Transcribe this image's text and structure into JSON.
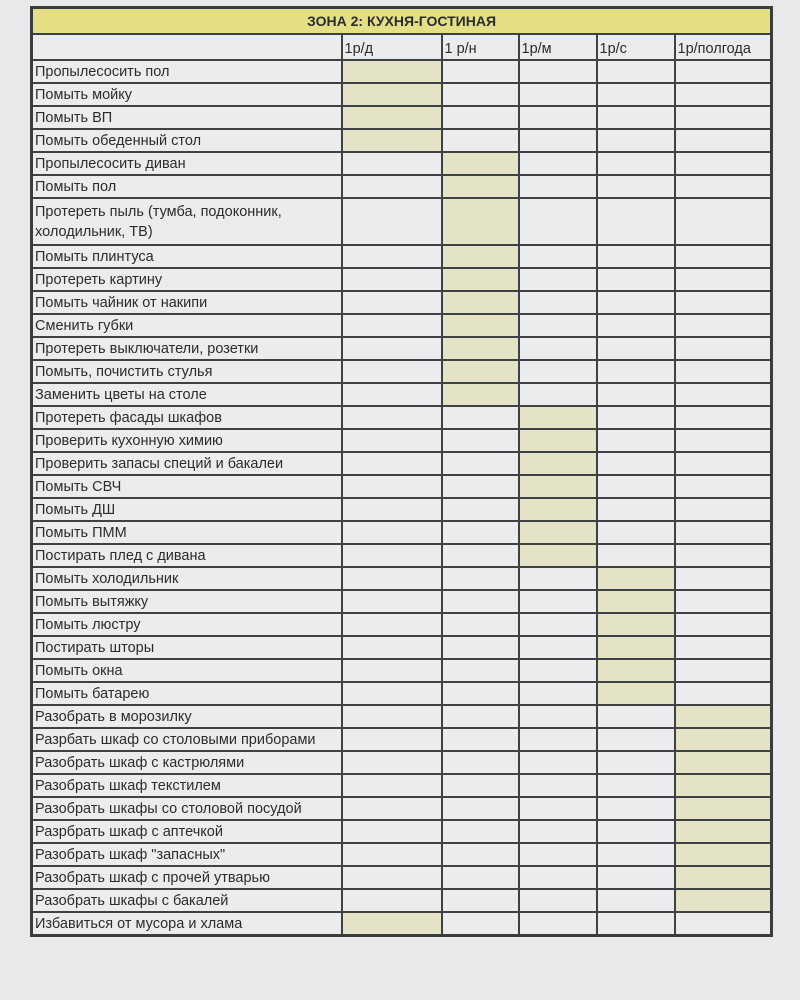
{
  "title": "ЗОНА 2: КУХНЯ-ГОСТИНАЯ",
  "columns": [
    "1р/д",
    "1 р/н",
    "1р/м",
    "1р/с",
    "1р/полгода"
  ],
  "colors": {
    "title_bg": "#e4df85",
    "highlight": "#e4e3c6",
    "border": "#3f4245"
  },
  "rows": [
    {
      "task": "Пропылесосить пол",
      "frequency": "1р/д"
    },
    {
      "task": "Помыть мойку",
      "frequency": "1р/д"
    },
    {
      "task": "Помыть ВП",
      "frequency": "1р/д"
    },
    {
      "task": "Помыть обеденный стол",
      "frequency": "1р/д"
    },
    {
      "task": "Пропылесосить диван",
      "frequency": "1 р/н"
    },
    {
      "task": "Помыть пол",
      "frequency": "1 р/н"
    },
    {
      "task": "Протереть пыль (тумба, подоконник, холодильник, ТВ)",
      "frequency": "1 р/н"
    },
    {
      "task": "Помыть плинтуса",
      "frequency": "1 р/н"
    },
    {
      "task": "Протереть картину",
      "frequency": "1 р/н"
    },
    {
      "task": "Помыть чайник от накипи",
      "frequency": "1 р/н"
    },
    {
      "task": "Сменить губки",
      "frequency": "1 р/н"
    },
    {
      "task": "Протереть выключатели, розетки",
      "frequency": "1 р/н"
    },
    {
      "task": "Помыть, почистить стулья",
      "frequency": "1 р/н"
    },
    {
      "task": "Заменить цветы на столе",
      "frequency": "1 р/н"
    },
    {
      "task": "Протереть фасады шкафов",
      "frequency": "1р/м"
    },
    {
      "task": "Проверить кухонную химию",
      "frequency": "1р/м"
    },
    {
      "task": "Проверить запасы специй и бакалеи",
      "frequency": "1р/м"
    },
    {
      "task": "Помыть СВЧ",
      "frequency": "1р/м"
    },
    {
      "task": "Помыть ДШ",
      "frequency": "1р/м"
    },
    {
      "task": "Помыть ПММ",
      "frequency": "1р/м"
    },
    {
      "task": "Постирать плед с дивана",
      "frequency": "1р/м"
    },
    {
      "task": "Помыть холодильник",
      "frequency": "1р/с"
    },
    {
      "task": "Помыть вытяжку",
      "frequency": "1р/с"
    },
    {
      "task": "Помыть люстру",
      "frequency": "1р/с"
    },
    {
      "task": "Постирать шторы",
      "frequency": "1р/с"
    },
    {
      "task": "Помыть окна",
      "frequency": "1р/с"
    },
    {
      "task": "Помыть батарею",
      "frequency": "1р/с"
    },
    {
      "task": "Разобрать в морозилку",
      "frequency": "1р/полгода"
    },
    {
      "task": "Разрбать шкаф со столовыми приборами",
      "frequency": "1р/полгода"
    },
    {
      "task": "Разобрать шкаф с кастрюлями",
      "frequency": "1р/полгода"
    },
    {
      "task": "Разобрать шкаф текстилем",
      "frequency": "1р/полгода"
    },
    {
      "task": "Разобрать шкафы со столовой посудой",
      "frequency": "1р/полгода"
    },
    {
      "task": "Разрбрать шкаф с аптечкой",
      "frequency": "1р/полгода"
    },
    {
      "task": "Разобрать шкаф \"запасных\"",
      "frequency": "1р/полгода"
    },
    {
      "task": "Разобрать шкаф с прочей утварью",
      "frequency": "1р/полгода"
    },
    {
      "task": "Разобрать шкафы с бакалей",
      "frequency": "1р/полгода"
    },
    {
      "task": "Избавиться от мусора и хлама",
      "frequency": "1р/д"
    }
  ]
}
